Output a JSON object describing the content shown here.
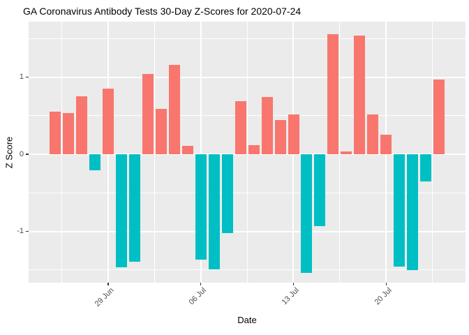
{
  "chart_data": {
    "type": "bar",
    "title": "GA Coronavirus Antibody Tests 30-Day Z-Scores for 2020-07-24",
    "xlabel": "Date",
    "ylabel": "Z Score",
    "x": [
      "2020-06-25",
      "2020-06-26",
      "2020-06-27",
      "2020-06-28",
      "2020-06-29",
      "2020-06-30",
      "2020-07-01",
      "2020-07-02",
      "2020-07-03",
      "2020-07-04",
      "2020-07-05",
      "2020-07-06",
      "2020-07-07",
      "2020-07-08",
      "2020-07-09",
      "2020-07-10",
      "2020-07-11",
      "2020-07-12",
      "2020-07-13",
      "2020-07-14",
      "2020-07-15",
      "2020-07-16",
      "2020-07-17",
      "2020-07-18",
      "2020-07-19",
      "2020-07-20",
      "2020-07-21",
      "2020-07-22",
      "2020-07-23",
      "2020-07-24"
    ],
    "values": [
      0.55,
      0.53,
      0.75,
      -0.21,
      0.85,
      -1.47,
      -1.39,
      1.04,
      0.59,
      1.16,
      0.11,
      -1.37,
      -1.49,
      -1.02,
      0.69,
      0.12,
      0.74,
      0.44,
      0.52,
      -1.54,
      -0.93,
      1.56,
      0.04,
      1.54,
      0.52,
      0.25,
      -1.46,
      -1.5,
      -0.35,
      0.97
    ],
    "positive_color": "#F8766D",
    "negative_color": "#00BFC4",
    "x_ticks": [
      {
        "label": "29 Jun",
        "date": "2020-06-29"
      },
      {
        "label": "06 Jul",
        "date": "2020-07-06"
      },
      {
        "label": "13 Jul",
        "date": "2020-07-13"
      },
      {
        "label": "20 Jul",
        "date": "2020-07-20"
      }
    ],
    "y_ticks": [
      {
        "label": "1",
        "value": 1
      },
      {
        "label": "0",
        "value": 0
      },
      {
        "label": "-1",
        "value": -1
      }
    ],
    "y_minor_ticks": [
      1.5,
      0.5,
      -0.5,
      -1.5
    ],
    "ylim": [
      -1.69,
      1.72
    ],
    "grid": true,
    "legend_position": "none",
    "panel_bg": "#EBEBEB",
    "grid_color": "#FFFFFF"
  }
}
